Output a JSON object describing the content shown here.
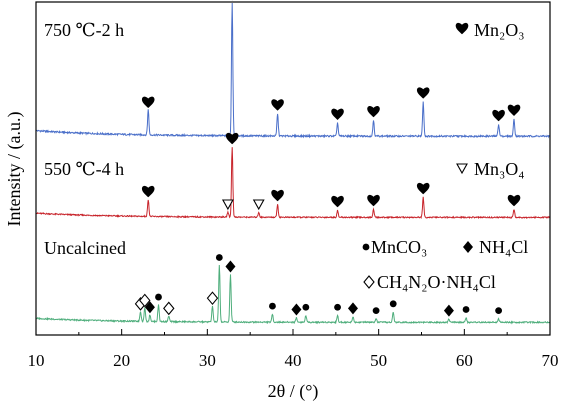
{
  "chart_data": {
    "type": "line",
    "title": "",
    "xlabel": "2θ / (°)",
    "ylabel": "Intensity / (a.u.)",
    "xlim": [
      10,
      70
    ],
    "xticks": [
      10,
      20,
      30,
      40,
      50,
      60,
      70
    ],
    "y_ticks_shown": false,
    "grid": false,
    "series": [
      {
        "name": "750 ℃-2 h",
        "color": "#4a6fc9",
        "baseline": 0.12,
        "peaks": [
          {
            "x": 23.1,
            "h": 0.19,
            "marker": "heart"
          },
          {
            "x": 32.9,
            "h": 1.0,
            "marker": "heart"
          },
          {
            "x": 38.2,
            "h": 0.17,
            "marker": "heart"
          },
          {
            "x": 45.2,
            "h": 0.1,
            "marker": "heart"
          },
          {
            "x": 49.4,
            "h": 0.12,
            "marker": "heart"
          },
          {
            "x": 55.2,
            "h": 0.26,
            "marker": "heart"
          },
          {
            "x": 64.0,
            "h": 0.09,
            "marker": "heart"
          },
          {
            "x": 65.8,
            "h": 0.13,
            "marker": "heart"
          }
        ]
      },
      {
        "name": "550 ℃-4 h",
        "color": "#c8252c",
        "baseline": 0.12,
        "peaks": [
          {
            "x": 23.1,
            "h": 0.17,
            "marker": "heart"
          },
          {
            "x": 32.4,
            "h": 0.05,
            "marker": "triangle"
          },
          {
            "x": 32.9,
            "h": 0.7,
            "marker": "heart"
          },
          {
            "x": 36.0,
            "h": 0.05,
            "marker": "triangle"
          },
          {
            "x": 38.2,
            "h": 0.13,
            "marker": "heart"
          },
          {
            "x": 45.2,
            "h": 0.07,
            "marker": "heart"
          },
          {
            "x": 49.4,
            "h": 0.08,
            "marker": "heart"
          },
          {
            "x": 55.2,
            "h": 0.2,
            "marker": "heart"
          },
          {
            "x": 65.8,
            "h": 0.08,
            "marker": "heart"
          }
        ]
      },
      {
        "name": "Uncalcined",
        "color": "#4fae7c",
        "baseline": 0.1,
        "peaks": [
          {
            "x": 22.2,
            "h": 0.09,
            "marker": "open-diamond"
          },
          {
            "x": 22.7,
            "h": 0.12,
            "marker": "open-diamond"
          },
          {
            "x": 23.3,
            "h": 0.06,
            "marker": "filled-diamond"
          },
          {
            "x": 24.3,
            "h": 0.15,
            "marker": "dot"
          },
          {
            "x": 25.5,
            "h": 0.05,
            "marker": "open-diamond"
          },
          {
            "x": 30.6,
            "h": 0.14,
            "marker": "open-diamond"
          },
          {
            "x": 31.4,
            "h": 0.5,
            "marker": "dot"
          },
          {
            "x": 32.7,
            "h": 0.42,
            "marker": "filled-diamond"
          },
          {
            "x": 37.6,
            "h": 0.07,
            "marker": "dot"
          },
          {
            "x": 40.4,
            "h": 0.04,
            "marker": "filled-diamond"
          },
          {
            "x": 41.5,
            "h": 0.06,
            "marker": "dot"
          },
          {
            "x": 45.2,
            "h": 0.06,
            "marker": "dot"
          },
          {
            "x": 47.0,
            "h": 0.05,
            "marker": "filled-diamond"
          },
          {
            "x": 49.7,
            "h": 0.03,
            "marker": "dot"
          },
          {
            "x": 51.7,
            "h": 0.09,
            "marker": "dot"
          },
          {
            "x": 58.2,
            "h": 0.03,
            "marker": "filled-diamond"
          },
          {
            "x": 60.2,
            "h": 0.04,
            "marker": "dot"
          },
          {
            "x": 64.0,
            "h": 0.03,
            "marker": "dot"
          }
        ]
      }
    ],
    "legend": [
      {
        "marker": "heart",
        "text": "Mn₂O₃",
        "color": "#000000"
      },
      {
        "marker": "triangle",
        "text": "Mn₃O₄",
        "color": "#000000"
      },
      {
        "marker": "dot",
        "text": "MnCO₃",
        "color": "#000000"
      },
      {
        "marker": "filled-diamond",
        "text": "NH₄Cl",
        "color": "#000000"
      },
      {
        "marker": "open-diamond",
        "text": "CH₄N₂O·NH₄Cl",
        "color": "#000000"
      }
    ]
  }
}
